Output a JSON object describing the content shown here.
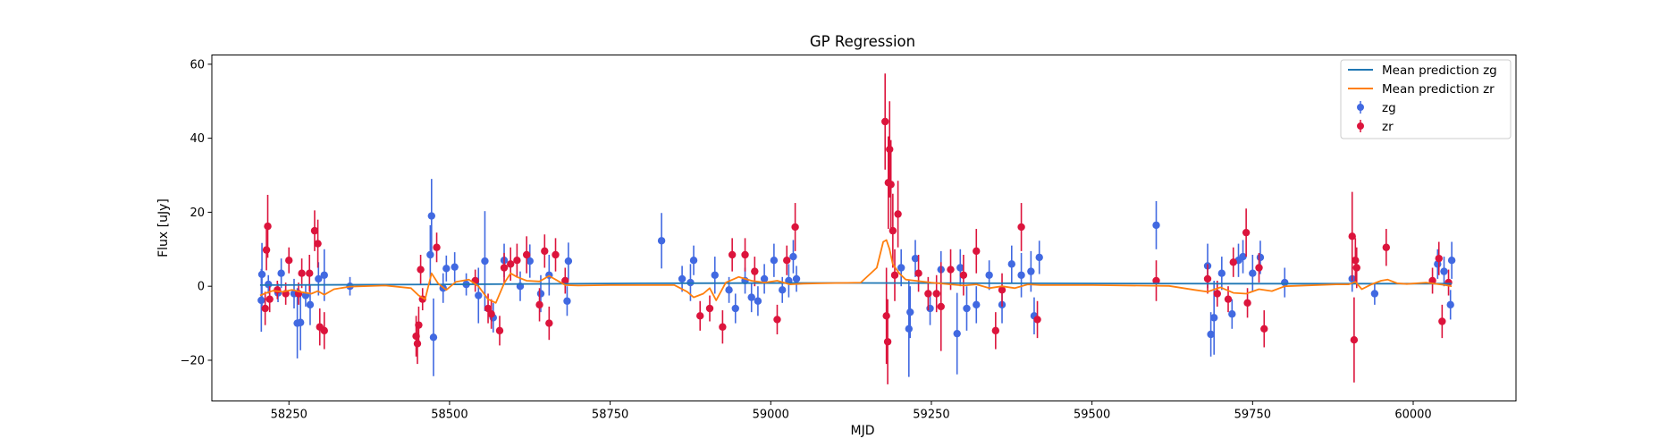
{
  "chart_data": {
    "type": "scatter",
    "title": "GP Regression",
    "xlabel": "MJD",
    "ylabel": "Flux [uJy]",
    "xlim": [
      58130,
      60160
    ],
    "ylim": [
      -31,
      62.5
    ],
    "xticks": [
      58250,
      58500,
      58750,
      59000,
      59250,
      59500,
      59750,
      60000
    ],
    "xtick_labels": [
      "58250",
      "58500",
      "58750",
      "59000",
      "59250",
      "59500",
      "59750",
      "60000"
    ],
    "yticks": [
      -20,
      0,
      20,
      40,
      60
    ],
    "ytick_labels": [
      "−20",
      "0",
      "20",
      "40",
      "60"
    ],
    "grid": false,
    "legend_position": "top-right",
    "legend": [
      "Mean prediction zg",
      "Mean prediction zr",
      "zg",
      "zr"
    ],
    "colors": {
      "mean_zg": "#1f77b4",
      "mean_zr": "#ff7f0e",
      "zg": "#4169e1",
      "zr": "#dc143c"
    },
    "series": [
      {
        "name": "Mean prediction zg",
        "kind": "line",
        "color": "#1f77b4",
        "x": [
          58205,
          58500,
          58800,
          59100,
          59400,
          59700,
          60000,
          60060
        ],
        "y": [
          0.3,
          0.5,
          0.8,
          0.9,
          0.8,
          0.7,
          0.7,
          0.7
        ]
      },
      {
        "name": "Mean prediction zr",
        "kind": "line",
        "color": "#ff7f0e",
        "x": [
          58205,
          58215,
          58225,
          58240,
          58255,
          58270,
          58285,
          58295,
          58305,
          58320,
          58345,
          58400,
          58440,
          58452,
          58462,
          58472,
          58482,
          58495,
          58510,
          58530,
          58545,
          58560,
          58572,
          58585,
          58595,
          58605,
          58620,
          58640,
          58655,
          58665,
          58680,
          58700,
          58750,
          58850,
          58870,
          58880,
          58895,
          58905,
          58915,
          58930,
          58950,
          58970,
          58990,
          59010,
          59030,
          59050,
          59080,
          59140,
          59165,
          59175,
          59180,
          59185,
          59190,
          59200,
          59210,
          59225,
          59250,
          59280,
          59300,
          59320,
          59340,
          59360,
          59380,
          59400,
          59420,
          59500,
          59620,
          59660,
          59680,
          59700,
          59720,
          59740,
          59760,
          59780,
          59800,
          59880,
          59900,
          59910,
          59920,
          59935,
          59950,
          59960,
          59975,
          59990,
          60020,
          60050,
          60060
        ],
        "y": [
          -2.5,
          -1.8,
          -1.2,
          -1.5,
          -1.0,
          -1.6,
          -2.0,
          -1.3,
          -2.3,
          -0.8,
          -0.1,
          0.2,
          -0.5,
          -2.5,
          -3.5,
          3.5,
          0.8,
          -1.0,
          1.2,
          1.8,
          0.0,
          -3.5,
          -4.5,
          0.8,
          3.5,
          2.5,
          1.5,
          1.3,
          2.8,
          1.8,
          0.3,
          0.2,
          0.3,
          0.3,
          -1.5,
          -3.0,
          -2.0,
          -0.5,
          -3.8,
          1.0,
          2.5,
          1.5,
          1.0,
          1.5,
          0.5,
          0.7,
          0.8,
          1.0,
          5.0,
          12.0,
          12.5,
          10.0,
          6.0,
          3.5,
          1.8,
          1.5,
          1.0,
          0.5,
          0.2,
          0.5,
          -0.5,
          0.0,
          -0.5,
          0.5,
          0.3,
          0.3,
          0.1,
          -1.0,
          -1.5,
          -0.3,
          -1.8,
          -2.0,
          -0.8,
          -1.3,
          0.0,
          0.5,
          0.5,
          1.2,
          -0.8,
          0.5,
          1.5,
          1.8,
          0.8,
          0.6,
          1.0,
          0.3,
          0.0
        ]
      },
      {
        "name": "zg",
        "kind": "errorbar",
        "color": "#4169e1",
        "points": [
          [
            58207,
            -3.8,
            8.5
          ],
          [
            58208,
            3.2,
            8.5
          ],
          [
            58218,
            0.5,
            2.5
          ],
          [
            58233,
            -1.8,
            2.5
          ],
          [
            58238,
            3.5,
            4.0
          ],
          [
            58258,
            -2.0,
            4.0
          ],
          [
            58263,
            -10.0,
            9.5
          ],
          [
            58268,
            -9.8,
            7.5
          ],
          [
            58276,
            -2.5,
            3.0
          ],
          [
            58283,
            -5.0,
            5.5
          ],
          [
            58296,
            2.0,
            4.5
          ],
          [
            58305,
            3.0,
            7.0
          ],
          [
            58345,
            0.0,
            2.5
          ],
          [
            58470,
            8.5,
            8.0
          ],
          [
            58472,
            19.0,
            10.0
          ],
          [
            58475,
            -13.8,
            10.5
          ],
          [
            58490,
            -0.5,
            4.0
          ],
          [
            58495,
            4.8,
            3.5
          ],
          [
            58508,
            5.2,
            4.0
          ],
          [
            58526,
            0.5,
            3.0
          ],
          [
            58545,
            -2.5,
            7.5
          ],
          [
            58555,
            6.8,
            13.5
          ],
          [
            58568,
            -8.5,
            4.0
          ],
          [
            58585,
            7.0,
            4.5
          ],
          [
            58610,
            0.0,
            4.0
          ],
          [
            58625,
            6.8,
            4.5
          ],
          [
            58642,
            -2.0,
            5.0
          ],
          [
            58655,
            3.0,
            5.5
          ],
          [
            58683,
            -4.0,
            4.0
          ],
          [
            58685,
            6.8,
            5.0
          ],
          [
            58830,
            12.3,
            7.5
          ],
          [
            58862,
            2.0,
            3.5
          ],
          [
            58875,
            1.0,
            5.0
          ],
          [
            58880,
            7.0,
            4.0
          ],
          [
            58913,
            3.0,
            5.0
          ],
          [
            58935,
            -1.0,
            3.5
          ],
          [
            58945,
            -6.0,
            4.0
          ],
          [
            58960,
            1.5,
            3.5
          ],
          [
            58970,
            -3.0,
            4.0
          ],
          [
            58980,
            -4.0,
            4.0
          ],
          [
            58990,
            2.0,
            4.0
          ],
          [
            59005,
            7.0,
            4.5
          ],
          [
            59018,
            -1.0,
            3.5
          ],
          [
            59028,
            1.5,
            4.5
          ],
          [
            59035,
            8.0,
            4.5
          ],
          [
            59040,
            2.0,
            3.5
          ],
          [
            59203,
            5.0,
            5.0
          ],
          [
            59215,
            -11.5,
            13.0
          ],
          [
            59217,
            -7.0,
            7.0
          ],
          [
            59225,
            7.5,
            5.0
          ],
          [
            59248,
            -6.0,
            4.5
          ],
          [
            59265,
            4.5,
            5.0
          ],
          [
            59290,
            -12.8,
            11.0
          ],
          [
            59295,
            5.0,
            5.0
          ],
          [
            59305,
            -6.0,
            6.0
          ],
          [
            59320,
            -5.0,
            5.0
          ],
          [
            59340,
            3.0,
            4.0
          ],
          [
            59360,
            -5.0,
            5.0
          ],
          [
            59375,
            6.0,
            5.0
          ],
          [
            59390,
            3.0,
            6.0
          ],
          [
            59405,
            4.0,
            5.5
          ],
          [
            59410,
            -8.0,
            5.0
          ],
          [
            59418,
            7.8,
            4.5
          ],
          [
            59600,
            16.5,
            6.5
          ],
          [
            59680,
            5.5,
            6.0
          ],
          [
            59685,
            -13.0,
            6.0
          ],
          [
            59690,
            -8.5,
            10.0
          ],
          [
            59702,
            3.5,
            4.5
          ],
          [
            59718,
            -7.5,
            4.0
          ],
          [
            59728,
            7.0,
            4.5
          ],
          [
            59735,
            8.0,
            4.5
          ],
          [
            59750,
            3.5,
            5.0
          ],
          [
            59762,
            7.8,
            4.5
          ],
          [
            59800,
            1.0,
            4.0
          ],
          [
            59905,
            2.0,
            3.5
          ],
          [
            59940,
            -2.0,
            3.0
          ],
          [
            60038,
            6.0,
            4.0
          ],
          [
            60048,
            4.0,
            4.0
          ],
          [
            60058,
            -5.0,
            4.0
          ],
          [
            60060,
            7.0,
            5.0
          ]
        ]
      },
      {
        "name": "zr",
        "kind": "errorbar",
        "color": "#dc143c",
        "points": [
          [
            58213,
            -6.0,
            4.5
          ],
          [
            58215,
            9.8,
            5.5
          ],
          [
            58217,
            16.2,
            8.5
          ],
          [
            58220,
            -3.5,
            3.5
          ],
          [
            58232,
            -1.0,
            2.5
          ],
          [
            58245,
            -2.0,
            3.0
          ],
          [
            58250,
            7.0,
            3.5
          ],
          [
            58265,
            -2.0,
            3.0
          ],
          [
            58270,
            3.5,
            4.0
          ],
          [
            58282,
            3.5,
            5.0
          ],
          [
            58290,
            15.0,
            5.5
          ],
          [
            58295,
            11.5,
            6.5
          ],
          [
            58298,
            -11.0,
            5.0
          ],
          [
            58305,
            -12.0,
            5.0
          ],
          [
            58448,
            -13.5,
            5.5
          ],
          [
            58450,
            -15.5,
            5.5
          ],
          [
            58452,
            -10.5,
            5.0
          ],
          [
            58455,
            4.5,
            4.0
          ],
          [
            58458,
            -3.5,
            3.0
          ],
          [
            58480,
            10.5,
            4.0
          ],
          [
            58540,
            1.5,
            3.0
          ],
          [
            58560,
            -6.0,
            4.0
          ],
          [
            58565,
            -7.5,
            4.0
          ],
          [
            58578,
            -12.0,
            4.0
          ],
          [
            58585,
            5.0,
            4.0
          ],
          [
            58595,
            6.0,
            4.5
          ],
          [
            58605,
            7.0,
            4.5
          ],
          [
            58620,
            8.5,
            5.0
          ],
          [
            58640,
            -5.0,
            4.5
          ],
          [
            58648,
            9.5,
            4.5
          ],
          [
            58655,
            -10.0,
            4.5
          ],
          [
            58665,
            8.5,
            4.5
          ],
          [
            58680,
            1.5,
            3.5
          ],
          [
            58890,
            -8.0,
            4.0
          ],
          [
            58905,
            -6.0,
            3.5
          ],
          [
            58925,
            -11.0,
            4.5
          ],
          [
            58940,
            8.5,
            4.5
          ],
          [
            58960,
            8.5,
            4.5
          ],
          [
            58975,
            4.0,
            4.0
          ],
          [
            59010,
            -9.0,
            4.0
          ],
          [
            59025,
            7.0,
            4.0
          ],
          [
            59038,
            16.0,
            6.5
          ],
          [
            59178,
            44.5,
            13.0
          ],
          [
            59180,
            -8.0,
            13.0
          ],
          [
            59182,
            -15.0,
            11.5
          ],
          [
            59183,
            28.0,
            12.5
          ],
          [
            59185,
            37.0,
            13.0
          ],
          [
            59187,
            27.5,
            12.0
          ],
          [
            59190,
            15.0,
            10.0
          ],
          [
            59193,
            3.0,
            7.0
          ],
          [
            59198,
            19.5,
            9.0
          ],
          [
            59230,
            3.5,
            5.0
          ],
          [
            59245,
            -2.0,
            4.5
          ],
          [
            59258,
            -2.0,
            5.0
          ],
          [
            59265,
            -5.5,
            12.0
          ],
          [
            59280,
            4.5,
            5.5
          ],
          [
            59300,
            3.0,
            5.5
          ],
          [
            59320,
            9.5,
            6.0
          ],
          [
            59350,
            -12.0,
            5.0
          ],
          [
            59360,
            -1.0,
            4.5
          ],
          [
            59390,
            16.0,
            6.5
          ],
          [
            59415,
            -9.0,
            5.0
          ],
          [
            59600,
            1.5,
            5.5
          ],
          [
            59680,
            2.0,
            4.0
          ],
          [
            59695,
            -2.0,
            3.5
          ],
          [
            59712,
            -3.5,
            3.5
          ],
          [
            59720,
            6.5,
            4.0
          ],
          [
            59740,
            14.5,
            6.5
          ],
          [
            59742,
            -4.5,
            4.0
          ],
          [
            59760,
            5.0,
            4.0
          ],
          [
            59768,
            -11.5,
            5.0
          ],
          [
            59905,
            13.5,
            12.0
          ],
          [
            59908,
            -14.5,
            11.5
          ],
          [
            59910,
            7.0,
            6.0
          ],
          [
            59912,
            5.0,
            5.5
          ],
          [
            59958,
            10.5,
            5.0
          ],
          [
            60030,
            1.5,
            3.5
          ],
          [
            60040,
            7.5,
            4.5
          ],
          [
            60045,
            -9.5,
            4.5
          ],
          [
            60055,
            1.0,
            3.5
          ]
        ]
      }
    ]
  }
}
